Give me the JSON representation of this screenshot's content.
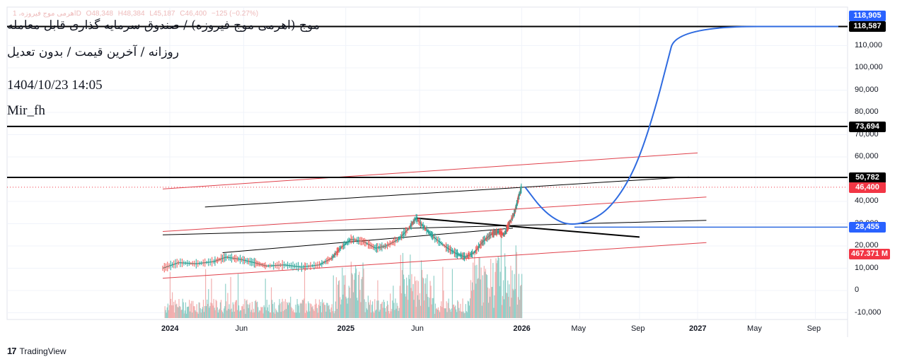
{
  "header": {
    "title": "موج (اهرمی موج فیروزه) / صندوق سرمایه گذاری قابل معامله",
    "subtitle": "روزانه / آخرین قیمت / بدون تعدیل",
    "datetime": "1404/10/23 14:05",
    "author": "Mir_fh",
    "ohlc": {
      "symbol": "اهرمی موج فیروزه، 1D",
      "open": "O48,348",
      "high": "H48,384",
      "low": "L45,187",
      "close": "C46,400",
      "change": "−125 (−0.27%)"
    }
  },
  "branding": {
    "logo_text": "TradingView"
  },
  "colors": {
    "blue_path": "#2f6be0",
    "channel_red": "#e0414b",
    "level_black": "#000000",
    "volume_up": "#7fc8bf",
    "volume_down": "#f0a2a2",
    "tag_blue": "#2962ff",
    "tag_red": "#f23645"
  },
  "chart_data": {
    "type": "line",
    "title": "موج (اهرمی موج فیروزه) / صندوق سرمایه گذاری قابل معامله",
    "xlabel": "",
    "ylabel": "",
    "ylim": [
      -13000,
      122000
    ],
    "x_ticks": [
      {
        "label": "2024",
        "bold": true,
        "t": 2024.0
      },
      {
        "label": "Jun",
        "bold": false,
        "t": 2024.42
      },
      {
        "label": "2025",
        "bold": true,
        "t": 2025.0
      },
      {
        "label": "Jun",
        "bold": false,
        "t": 2025.42
      },
      {
        "label": "2026",
        "bold": true,
        "t": 2026.0
      },
      {
        "label": "May",
        "bold": false,
        "t": 2026.33
      },
      {
        "label": "Sep",
        "bold": false,
        "t": 2026.67
      },
      {
        "label": "2027",
        "bold": true,
        "t": 2027.0
      },
      {
        "label": "May",
        "bold": false,
        "t": 2027.33
      },
      {
        "label": "Sep",
        "bold": false,
        "t": 2027.67
      }
    ],
    "y_ticks": [
      {
        "value": 110000,
        "label": "110,000"
      },
      {
        "value": 100000,
        "label": "100,000"
      },
      {
        "value": 90000,
        "label": "90,000"
      },
      {
        "value": 80000,
        "label": "80,000"
      },
      {
        "value": 70000,
        "label": "70,000"
      },
      {
        "value": 60000,
        "label": "60,000"
      },
      {
        "value": 40000,
        "label": "40,000"
      },
      {
        "value": 30000,
        "label": "30,000"
      },
      {
        "value": 20000,
        "label": "20,000"
      },
      {
        "value": 10000,
        "label": "10,000"
      },
      {
        "value": 0,
        "label": "0"
      },
      {
        "value": -10000,
        "label": "-10,000"
      }
    ],
    "price_series": {
      "name": "price",
      "points": [
        [
          2023.96,
          10000
        ],
        [
          2024.05,
          12500
        ],
        [
          2024.15,
          12000
        ],
        [
          2024.25,
          13000
        ],
        [
          2024.32,
          15000
        ],
        [
          2024.4,
          14000
        ],
        [
          2024.48,
          12500
        ],
        [
          2024.55,
          11000
        ],
        [
          2024.65,
          11500
        ],
        [
          2024.75,
          10500
        ],
        [
          2024.85,
          11500
        ],
        [
          2024.92,
          14500
        ],
        [
          2024.97,
          19000
        ],
        [
          2025.03,
          23000
        ],
        [
          2025.1,
          22000
        ],
        [
          2025.17,
          19000
        ],
        [
          2025.23,
          20000
        ],
        [
          2025.3,
          23000
        ],
        [
          2025.36,
          28000
        ],
        [
          2025.4,
          32500
        ],
        [
          2025.45,
          28000
        ],
        [
          2025.5,
          24000
        ],
        [
          2025.57,
          19500
        ],
        [
          2025.63,
          16500
        ],
        [
          2025.68,
          15000
        ],
        [
          2025.73,
          17000
        ],
        [
          2025.78,
          22000
        ],
        [
          2025.83,
          25500
        ],
        [
          2025.87,
          26500
        ],
        [
          2025.9,
          25000
        ],
        [
          2025.93,
          30000
        ],
        [
          2025.96,
          35000
        ],
        [
          2025.98,
          41000
        ],
        [
          2026.0,
          46400
        ]
      ]
    },
    "projection": {
      "name": "projected path",
      "points": [
        [
          2026.02,
          46400
        ],
        [
          2026.12,
          36000
        ],
        [
          2026.22,
          30500
        ],
        [
          2026.3,
          29500
        ],
        [
          2026.4,
          31500
        ],
        [
          2026.5,
          37000
        ],
        [
          2026.6,
          48000
        ],
        [
          2026.68,
          62000
        ],
        [
          2026.76,
          82000
        ],
        [
          2026.82,
          100000
        ],
        [
          2026.88,
          118587
        ],
        [
          2027.8,
          118587
        ]
      ]
    },
    "volume_series": {
      "name": "volume",
      "last_label": "467.371 M"
    },
    "trendlines": [
      {
        "name": "channel-top",
        "color": "red",
        "from": [
          2023.96,
          45600
        ],
        "to": [
          2027.0,
          61800
        ]
      },
      {
        "name": "channel-mid",
        "color": "red",
        "from": [
          2023.96,
          26500
        ],
        "to": [
          2027.05,
          42000
        ]
      },
      {
        "name": "channel-bottom",
        "color": "red",
        "from": [
          2023.96,
          5500
        ],
        "to": [
          2027.05,
          21500
        ]
      },
      {
        "name": "upper-thin",
        "color": "black",
        "from": [
          2024.2,
          37500
        ],
        "to": [
          2026.95,
          51000
        ]
      },
      {
        "name": "lower-thin",
        "color": "black",
        "from": [
          2023.96,
          25000
        ],
        "to": [
          2027.05,
          31500
        ]
      },
      {
        "name": "middle-thin",
        "color": "black",
        "from": [
          2024.3,
          17000
        ],
        "to": [
          2025.95,
          28000
        ]
      },
      {
        "name": "resistance-down",
        "color": "black",
        "from": [
          2025.4,
          32500
        ],
        "to": [
          2026.67,
          24000
        ],
        "width": 2
      }
    ],
    "horizontal_levels": [
      {
        "name": "level-118587",
        "value": 118587,
        "label": "118,587"
      },
      {
        "name": "level-73694",
        "value": 73694,
        "label": "73,694"
      },
      {
        "name": "level-50782",
        "value": 50782,
        "label": "50,782"
      }
    ],
    "price_tags": [
      {
        "name": "tag-118905",
        "value": 118905,
        "label": "118,905",
        "color": "#2962ff"
      },
      {
        "name": "tag-118587",
        "value": 118587,
        "label": "118,587",
        "color": "#000000"
      },
      {
        "name": "tag-73694",
        "value": 73694,
        "label": "73,694",
        "color": "#000000"
      },
      {
        "name": "tag-50782",
        "value": 50782,
        "label": "50,782",
        "color": "#000000"
      },
      {
        "name": "tag-46400",
        "value": 46400,
        "label": "46,400",
        "color": "#f23645"
      },
      {
        "name": "tag-28455",
        "value": 28455,
        "label": "28,455",
        "color": "#2962ff"
      },
      {
        "name": "tag-volume",
        "value": 16000,
        "label": "467.371 M",
        "color": "#f23645"
      }
    ],
    "current_price": 46400,
    "target_level": 28455
  }
}
